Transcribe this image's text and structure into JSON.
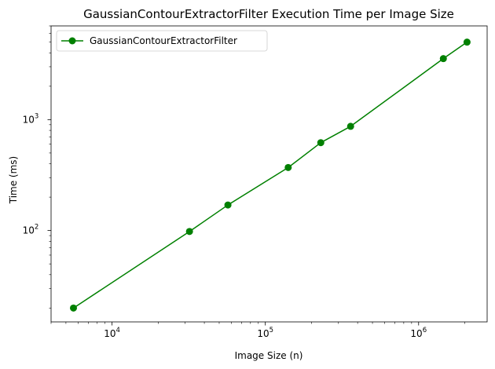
{
  "chart_data": {
    "type": "line",
    "title": "GaussianContourExtractorFilter Execution Time per Image Size",
    "xlabel": "Image Size (n)",
    "ylabel": "Time (ms)",
    "xscale": "log",
    "yscale": "log",
    "xlim": [
      4000,
      2800000
    ],
    "ylim": [
      15,
      7000
    ],
    "x_ticks": [
      {
        "base": "10",
        "exp": "4",
        "value": 10000
      },
      {
        "base": "10",
        "exp": "5",
        "value": 100000
      },
      {
        "base": "10",
        "exp": "6",
        "value": 1000000
      }
    ],
    "y_ticks": [
      {
        "base": "10",
        "exp": "2",
        "value": 100
      },
      {
        "base": "10",
        "exp": "3",
        "value": 1000
      }
    ],
    "grid": false,
    "legend_position": "top-left",
    "series": [
      {
        "name": "GaussianContourExtractorFilter",
        "color": "#008000",
        "marker": "circle",
        "x": [
          5600,
          32000,
          57000,
          141000,
          230000,
          360000,
          1450000,
          2070000
        ],
        "y": [
          20,
          98,
          170,
          370,
          620,
          870,
          3550,
          5000
        ]
      }
    ]
  }
}
